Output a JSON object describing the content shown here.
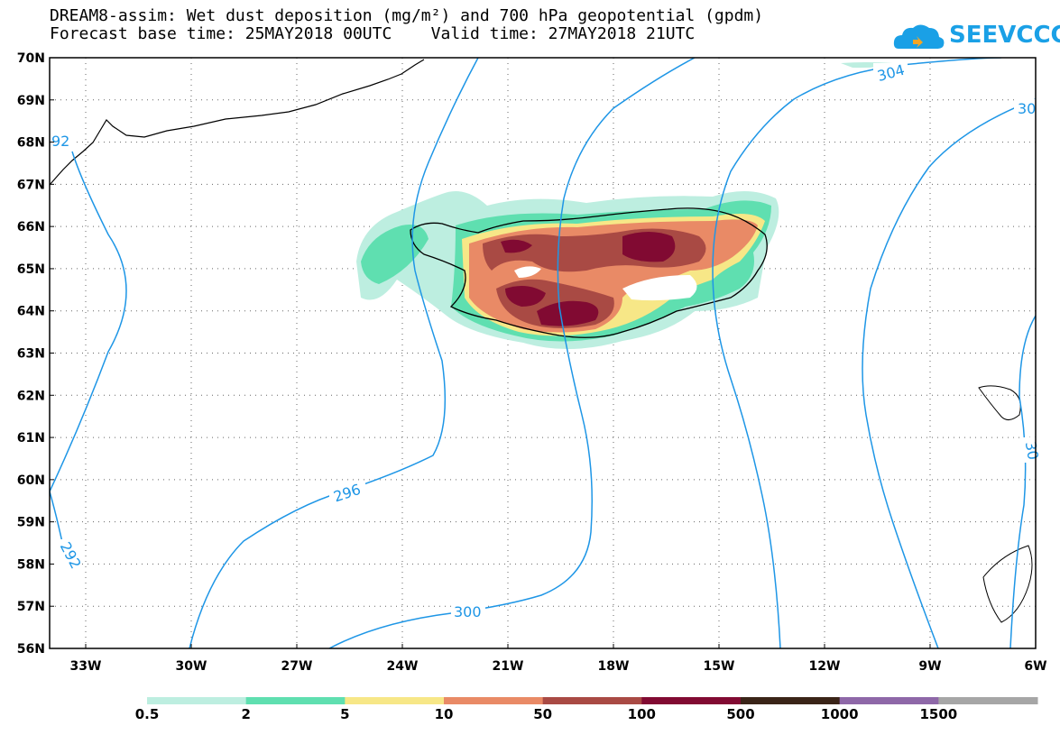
{
  "header": {
    "title_line1": "DREAM8-assim: Wet dust deposition (mg/m²) and 700 hPa geopotential (gpdm)",
    "title_line2": "Forecast base time: 25MAY2018 00UTC    Valid time: 27MAY2018 21UTC"
  },
  "logo": {
    "text": "SEEVCCC",
    "color": "#1aa0e6"
  },
  "map": {
    "lat_labels": [
      "70N",
      "69N",
      "68N",
      "67N",
      "66N",
      "65N",
      "64N",
      "63N",
      "62N",
      "61N",
      "60N",
      "59N",
      "58N",
      "57N",
      "56N"
    ],
    "lon_labels": [
      "33W",
      "30W",
      "27W",
      "24W",
      "21W",
      "18W",
      "15W",
      "12W",
      "9W",
      "6W"
    ],
    "contour_labels": [
      "304",
      "30",
      "92",
      "296",
      "292",
      "300",
      "30"
    ]
  },
  "colorbar": {
    "labels": [
      "0.5",
      "2",
      "5",
      "10",
      "50",
      "100",
      "500",
      "1000",
      "1500"
    ],
    "colors": [
      "#bdeee0",
      "#5fdfb0",
      "#f7e787",
      "#e98a66",
      "#a94a44",
      "#810a32",
      "#3a2418",
      "#8e68a8",
      "#a6a6a6"
    ]
  }
}
